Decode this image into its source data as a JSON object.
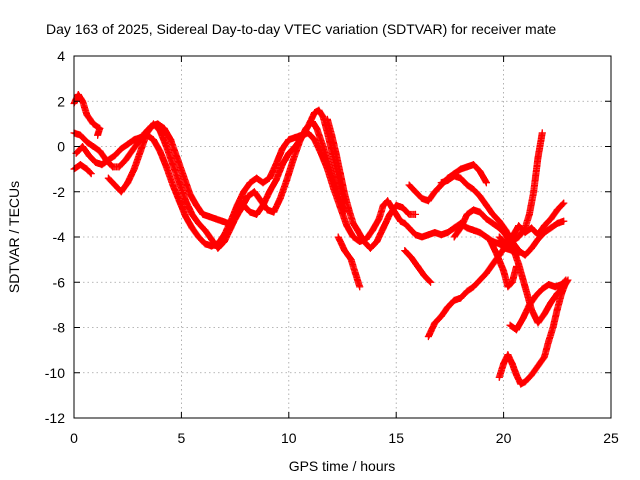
{
  "chart_data": {
    "type": "scatter",
    "title": "Day 163 of 2025, Sidereal Day-to-day VTEC variation (SDTVAR) for receiver mate",
    "xlabel": "GPS time / hours",
    "ylabel": "SDTVAR / TECUs",
    "xlim": [
      0,
      25
    ],
    "ylim": [
      -12,
      4
    ],
    "xticks": [
      0,
      5,
      10,
      15,
      20,
      25
    ],
    "yticks": [
      -12,
      -10,
      -8,
      -6,
      -4,
      -2,
      0,
      2,
      4
    ],
    "grid": true,
    "marker": "plus",
    "color": "#ff0000",
    "series": [
      {
        "points": [
          [
            0.0,
            1.9
          ],
          [
            0.2,
            2.3
          ],
          [
            0.4,
            2.0
          ],
          [
            0.6,
            1.4
          ],
          [
            0.9,
            1.0
          ],
          [
            1.2,
            0.8
          ],
          [
            1.1,
            0.5
          ]
        ]
      },
      {
        "points": [
          [
            0.0,
            0.6
          ],
          [
            0.3,
            0.5
          ],
          [
            0.6,
            0.2
          ],
          [
            0.9,
            0.0
          ],
          [
            1.2,
            -0.2
          ],
          [
            1.5,
            -0.6
          ],
          [
            1.8,
            -0.9
          ],
          [
            2.1,
            -0.9
          ],
          [
            2.4,
            -0.6
          ],
          [
            2.7,
            -0.2
          ],
          [
            3.0,
            0.2
          ],
          [
            3.3,
            0.6
          ],
          [
            3.6,
            0.9
          ],
          [
            3.9,
            1.0
          ],
          [
            4.2,
            0.8
          ],
          [
            4.5,
            0.3
          ],
          [
            4.8,
            -0.5
          ],
          [
            5.1,
            -1.3
          ],
          [
            5.4,
            -2.1
          ],
          [
            5.7,
            -2.6
          ],
          [
            6.0,
            -3.0
          ],
          [
            6.3,
            -3.1
          ],
          [
            6.6,
            -3.2
          ],
          [
            6.9,
            -3.3
          ],
          [
            7.2,
            -3.4
          ],
          [
            7.5,
            -3.2
          ],
          [
            7.8,
            -2.7
          ],
          [
            8.1,
            -2.2
          ],
          [
            8.4,
            -2.0
          ],
          [
            8.7,
            -2.4
          ],
          [
            9.0,
            -2.8
          ],
          [
            9.3,
            -2.9
          ],
          [
            9.6,
            -2.3
          ],
          [
            9.9,
            -1.5
          ],
          [
            10.2,
            -0.6
          ],
          [
            10.5,
            0.2
          ],
          [
            10.8,
            0.8
          ],
          [
            11.1,
            1.1
          ],
          [
            11.3,
            0.8
          ],
          [
            11.6,
            0.0
          ],
          [
            11.9,
            -0.9
          ],
          [
            12.2,
            -1.8
          ],
          [
            12.4,
            -2.4
          ],
          [
            12.6,
            -2.9
          ]
        ]
      },
      {
        "points": [
          [
            0.1,
            -0.3
          ],
          [
            0.4,
            0.0
          ],
          [
            0.7,
            -0.4
          ],
          [
            1.0,
            -0.7
          ],
          [
            1.3,
            -0.8
          ],
          [
            1.6,
            -0.6
          ],
          [
            1.9,
            -0.4
          ],
          [
            2.2,
            -0.1
          ],
          [
            2.5,
            0.1
          ],
          [
            2.8,
            0.3
          ],
          [
            3.1,
            0.4
          ],
          [
            3.4,
            0.5
          ],
          [
            3.7,
            0.3
          ],
          [
            4.0,
            -0.2
          ],
          [
            4.3,
            -0.9
          ],
          [
            4.6,
            -1.7
          ],
          [
            4.9,
            -2.4
          ],
          [
            5.2,
            -3.1
          ],
          [
            5.5,
            -3.6
          ],
          [
            5.8,
            -4.0
          ],
          [
            6.1,
            -4.3
          ],
          [
            6.4,
            -4.4
          ],
          [
            6.7,
            -4.3
          ],
          [
            7.0,
            -3.9
          ],
          [
            7.3,
            -3.3
          ],
          [
            7.6,
            -2.6
          ],
          [
            7.9,
            -2.0
          ],
          [
            8.2,
            -1.6
          ],
          [
            8.5,
            -1.4
          ],
          [
            8.8,
            -1.6
          ],
          [
            9.1,
            -1.4
          ],
          [
            9.4,
            -0.8
          ],
          [
            9.7,
            -0.1
          ],
          [
            10.0,
            0.3
          ],
          [
            10.3,
            0.4
          ],
          [
            10.6,
            0.5
          ],
          [
            10.9,
            0.6
          ],
          [
            11.2,
            0.3
          ],
          [
            11.5,
            -0.3
          ],
          [
            11.8,
            -1.0
          ],
          [
            12.1,
            -1.9
          ],
          [
            12.4,
            -2.7
          ],
          [
            12.7,
            -3.5
          ],
          [
            13.0,
            -4.0
          ],
          [
            13.3,
            -4.2
          ],
          [
            13.6,
            -4.1
          ],
          [
            13.9,
            -3.7
          ],
          [
            14.2,
            -3.2
          ],
          [
            14.4,
            -2.6
          ],
          [
            14.6,
            -2.4
          ],
          [
            14.8,
            -2.7
          ],
          [
            15.0,
            -3.0
          ],
          [
            15.2,
            -3.3
          ],
          [
            15.4,
            -3.4
          ],
          [
            15.6,
            -3.6
          ],
          [
            15.9,
            -3.9
          ],
          [
            16.2,
            -4.0
          ],
          [
            16.5,
            -3.9
          ],
          [
            16.8,
            -3.8
          ],
          [
            17.1,
            -3.9
          ],
          [
            17.4,
            -3.8
          ],
          [
            17.7,
            -3.6
          ],
          [
            18.0,
            -3.4
          ],
          [
            18.3,
            -3.6
          ],
          [
            18.6,
            -3.7
          ],
          [
            18.9,
            -3.8
          ],
          [
            19.2,
            -4.0
          ],
          [
            19.5,
            -4.2
          ],
          [
            19.8,
            -4.3
          ],
          [
            20.1,
            -4.5
          ],
          [
            20.4,
            -4.6
          ],
          [
            20.7,
            -4.8
          ]
        ]
      },
      {
        "points": [
          [
            0.0,
            -1.0
          ],
          [
            0.3,
            -0.8
          ],
          [
            0.6,
            -1.0
          ],
          [
            0.8,
            -1.2
          ]
        ]
      },
      {
        "points": [
          [
            1.6,
            -1.4
          ],
          [
            1.9,
            -1.7
          ],
          [
            2.2,
            -2.0
          ],
          [
            2.5,
            -1.6
          ],
          [
            2.8,
            -1.0
          ],
          [
            3.1,
            -0.2
          ],
          [
            3.4,
            0.6
          ],
          [
            3.7,
            1.0
          ],
          [
            4.0,
            0.7
          ],
          [
            4.3,
            0.0
          ],
          [
            4.6,
            -0.8
          ],
          [
            4.9,
            -1.6
          ],
          [
            5.2,
            -2.4
          ],
          [
            5.5,
            -3.0
          ],
          [
            5.8,
            -3.4
          ],
          [
            6.1,
            -3.7
          ],
          [
            6.4,
            -4.1
          ],
          [
            6.7,
            -4.5
          ],
          [
            7.0,
            -4.2
          ],
          [
            7.3,
            -3.6
          ],
          [
            7.6,
            -3.0
          ],
          [
            7.9,
            -2.6
          ],
          [
            8.2,
            -2.9
          ],
          [
            8.5,
            -3.0
          ],
          [
            8.8,
            -2.6
          ],
          [
            9.1,
            -2.0
          ],
          [
            9.4,
            -1.5
          ],
          [
            9.7,
            -0.8
          ],
          [
            10.0,
            -0.3
          ],
          [
            10.3,
            0.0
          ],
          [
            10.6,
            0.4
          ],
          [
            10.9,
            0.9
          ],
          [
            11.2,
            1.5
          ],
          [
            11.4,
            1.6
          ],
          [
            11.6,
            1.3
          ],
          [
            11.8,
            0.6
          ],
          [
            12.0,
            -0.2
          ],
          [
            12.2,
            -1.0
          ],
          [
            12.4,
            -1.8
          ],
          [
            12.6,
            -2.5
          ]
        ]
      },
      {
        "points": [
          [
            11.8,
            1.2
          ],
          [
            12.0,
            0.5
          ],
          [
            12.2,
            -0.3
          ],
          [
            12.4,
            -1.2
          ],
          [
            12.6,
            -2.1
          ],
          [
            12.8,
            -2.8
          ],
          [
            13.0,
            -3.4
          ],
          [
            13.2,
            -3.7
          ],
          [
            13.5,
            -4.2
          ],
          [
            13.8,
            -4.5
          ],
          [
            14.1,
            -4.2
          ],
          [
            14.4,
            -3.6
          ],
          [
            14.7,
            -3.0
          ],
          [
            15.0,
            -2.6
          ],
          [
            15.3,
            -2.7
          ],
          [
            15.6,
            -3.0
          ],
          [
            15.9,
            -3.0
          ]
        ]
      },
      {
        "points": [
          [
            12.3,
            -4.0
          ],
          [
            12.6,
            -4.6
          ],
          [
            12.9,
            -5.0
          ],
          [
            13.1,
            -5.6
          ],
          [
            13.3,
            -6.2
          ]
        ]
      },
      {
        "points": [
          [
            15.4,
            -4.6
          ],
          [
            15.7,
            -4.9
          ],
          [
            16.0,
            -5.3
          ],
          [
            16.3,
            -5.7
          ],
          [
            16.6,
            -6.0
          ]
        ]
      },
      {
        "points": [
          [
            15.6,
            -1.7
          ],
          [
            15.9,
            -2.0
          ],
          [
            16.2,
            -2.3
          ],
          [
            16.5,
            -2.4
          ],
          [
            16.8,
            -2.0
          ],
          [
            17.1,
            -1.7
          ],
          [
            17.4,
            -1.4
          ],
          [
            17.7,
            -1.2
          ],
          [
            18.0,
            -1.0
          ],
          [
            18.3,
            -0.9
          ],
          [
            18.6,
            -0.8
          ],
          [
            18.9,
            -1.1
          ],
          [
            19.2,
            -1.6
          ]
        ]
      },
      {
        "points": [
          [
            16.5,
            -8.4
          ],
          [
            16.8,
            -7.8
          ],
          [
            17.1,
            -7.5
          ],
          [
            17.4,
            -7.1
          ],
          [
            17.7,
            -6.8
          ],
          [
            18.0,
            -6.7
          ],
          [
            18.3,
            -6.4
          ],
          [
            18.6,
            -6.2
          ],
          [
            18.9,
            -5.9
          ],
          [
            19.2,
            -5.6
          ],
          [
            19.5,
            -5.2
          ],
          [
            19.8,
            -4.8
          ],
          [
            20.1,
            -4.4
          ],
          [
            20.4,
            -4.2
          ],
          [
            20.7,
            -4.0
          ],
          [
            21.0,
            -3.6
          ],
          [
            21.2,
            -3.0
          ],
          [
            21.4,
            -2.0
          ],
          [
            21.6,
            -0.5
          ],
          [
            21.8,
            0.6
          ]
        ]
      },
      {
        "points": [
          [
            17.1,
            -1.6
          ],
          [
            17.4,
            -1.5
          ],
          [
            17.7,
            -1.3
          ],
          [
            18.0,
            -1.4
          ],
          [
            18.3,
            -1.7
          ],
          [
            18.6,
            -1.9
          ],
          [
            18.9,
            -2.2
          ],
          [
            19.2,
            -2.6
          ],
          [
            19.5,
            -3.0
          ],
          [
            19.8,
            -3.3
          ],
          [
            20.1,
            -3.7
          ],
          [
            20.4,
            -4.2
          ],
          [
            20.7,
            -4.6
          ],
          [
            21.0,
            -4.8
          ],
          [
            21.3,
            -4.5
          ],
          [
            21.6,
            -4.1
          ],
          [
            21.9,
            -3.8
          ],
          [
            22.2,
            -3.6
          ],
          [
            22.5,
            -3.4
          ],
          [
            22.8,
            -3.3
          ]
        ]
      },
      {
        "points": [
          [
            17.7,
            -4.0
          ],
          [
            18.0,
            -3.6
          ],
          [
            18.3,
            -3.0
          ],
          [
            18.6,
            -2.8
          ],
          [
            18.9,
            -2.9
          ],
          [
            19.2,
            -3.2
          ],
          [
            19.5,
            -3.4
          ],
          [
            19.8,
            -3.6
          ],
          [
            20.1,
            -3.9
          ],
          [
            20.4,
            -4.4
          ],
          [
            20.7,
            -5.2
          ],
          [
            21.0,
            -6.2
          ],
          [
            21.3,
            -7.2
          ],
          [
            21.6,
            -7.8
          ],
          [
            21.9,
            -7.4
          ],
          [
            22.2,
            -6.9
          ],
          [
            22.5,
            -6.5
          ],
          [
            22.8,
            -6.2
          ],
          [
            23.0,
            -5.9
          ]
        ]
      },
      {
        "points": [
          [
            19.8,
            -10.2
          ],
          [
            20.0,
            -9.6
          ],
          [
            20.2,
            -9.2
          ],
          [
            20.4,
            -9.6
          ],
          [
            20.6,
            -10.1
          ],
          [
            20.8,
            -10.5
          ],
          [
            21.0,
            -10.4
          ],
          [
            21.3,
            -10.1
          ],
          [
            21.6,
            -9.7
          ],
          [
            21.9,
            -9.3
          ],
          [
            22.1,
            -8.6
          ],
          [
            22.3,
            -8.0
          ],
          [
            22.5,
            -7.2
          ],
          [
            22.7,
            -6.5
          ],
          [
            22.9,
            -6.0
          ]
        ]
      },
      {
        "points": [
          [
            20.3,
            -7.9
          ],
          [
            20.6,
            -8.1
          ],
          [
            20.9,
            -7.6
          ],
          [
            21.2,
            -7.0
          ],
          [
            21.5,
            -6.6
          ],
          [
            21.8,
            -6.3
          ],
          [
            22.1,
            -6.1
          ],
          [
            22.4,
            -6.2
          ],
          [
            22.7,
            -6.1
          ],
          [
            22.9,
            -5.9
          ]
        ]
      },
      {
        "points": [
          [
            19.8,
            -4.0
          ],
          [
            20.1,
            -4.3
          ],
          [
            20.4,
            -4.0
          ],
          [
            20.7,
            -3.5
          ],
          [
            21.0,
            -3.8
          ],
          [
            21.3,
            -3.6
          ],
          [
            21.6,
            -3.9
          ],
          [
            21.9,
            -3.5
          ],
          [
            22.2,
            -3.2
          ],
          [
            22.5,
            -2.8
          ],
          [
            22.8,
            -2.5
          ]
        ]
      },
      {
        "points": [
          [
            19.4,
            -4.2
          ],
          [
            19.7,
            -4.8
          ],
          [
            20.0,
            -5.5
          ],
          [
            20.2,
            -6.2
          ],
          [
            20.4,
            -6.0
          ],
          [
            20.6,
            -5.3
          ]
        ]
      }
    ]
  }
}
